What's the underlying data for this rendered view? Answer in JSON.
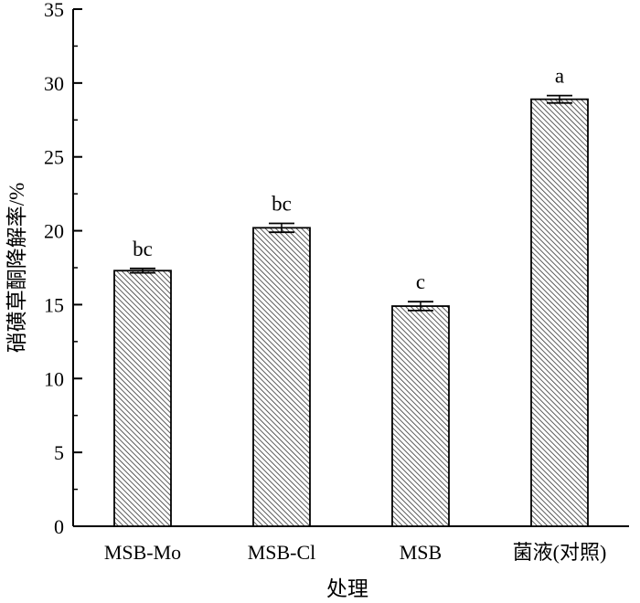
{
  "chart_data": {
    "type": "bar",
    "title": "",
    "xlabel": "处理",
    "ylabel": "硝磺草酮降解率/%",
    "categories": [
      "MSB-Mo",
      "MSB-Cl",
      "MSB",
      "菌液(对照)"
    ],
    "values": [
      17.3,
      20.2,
      14.9,
      28.9
    ],
    "errors": [
      0.15,
      0.3,
      0.3,
      0.25
    ],
    "significance": [
      "bc",
      "bc",
      "c",
      "a"
    ],
    "ylim": [
      0,
      35
    ],
    "yticks": [
      "0",
      "5",
      "10",
      "15",
      "20",
      "25",
      "30",
      "35"
    ],
    "grid": false,
    "bar_fill": "hatched",
    "colors": {
      "bar_fill": "#ffffff",
      "hatch": "#333333",
      "axis": "#000000"
    }
  }
}
